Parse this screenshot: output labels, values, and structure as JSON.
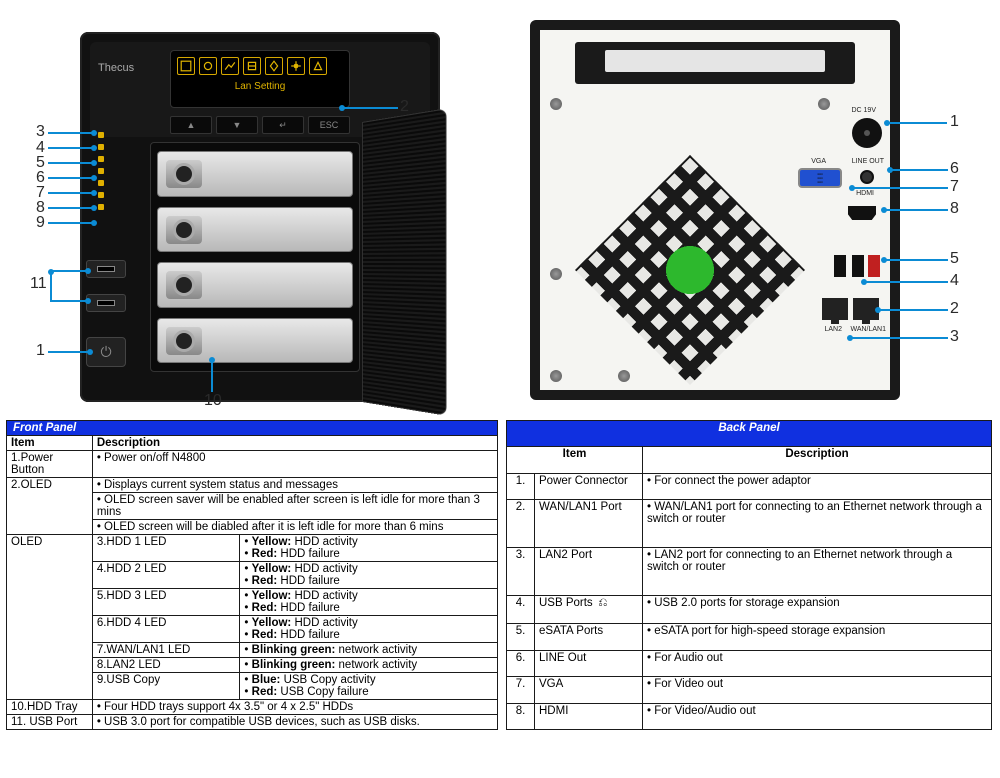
{
  "colors": {
    "callout": "#0b8bd4",
    "tableHeaderBg": "#1030e0",
    "tableHeaderFg": "#ffffff",
    "border": "#1a1a1a"
  },
  "front": {
    "brand": "Thecus",
    "oledText": "Lan Setting",
    "navButtons": [
      "▲",
      "▼",
      "↵",
      "ESC"
    ],
    "trayCount": 4,
    "ledCount": 7,
    "callouts": {
      "c1": "1",
      "c2": "2",
      "c3": "3",
      "c4": "4",
      "c5": "5",
      "c6": "6",
      "c7": "7",
      "c8": "8",
      "c9": "9",
      "c10": "10",
      "c11": "11"
    }
  },
  "back": {
    "labels": {
      "dc": "DC 19V",
      "vga": "VGA",
      "lineout": "LINE OUT",
      "hdmi": "HDMI",
      "lan2": "LAN2",
      "wanlan1": "WAN/LAN1"
    },
    "callouts": {
      "c1": "1",
      "c2": "2",
      "c3": "3",
      "c4": "4",
      "c5": "5",
      "c6": "6",
      "c7": "7",
      "c8": "8"
    }
  },
  "frontTable": {
    "title": "Front Panel",
    "headerItem": "Item",
    "headerDesc": "Description",
    "r1_item": "1.Power Button",
    "r1_d": "Power on/off N4800",
    "r2_item": "2.OLED",
    "r2_d1": "Displays current system status and messages",
    "r2_d2": "OLED screen saver will be enabled after screen is left idle for more than 3 mins",
    "r2_d3": "OLED screen will be diabled after it is left idle for more than 6 mins",
    "oled_label": "OLED",
    "l3_item": "3.HDD 1 LED",
    "l4_item": "4.HDD 2 LED",
    "l5_item": "5.HDD 3 LED",
    "l6_item": "6.HDD 4 LED",
    "l7_item": "7.WAN/LAN1 LED",
    "l8_item": "8.LAN2 LED",
    "l9_item": "9.USB Copy",
    "yellow_lbl": "Yellow:",
    "yellow_txt": " HDD activity",
    "red_lbl": "Red:",
    "red_txt": " HDD failure",
    "blinkg_lbl": "Blinking green:",
    "blinkg_txt": " network activity",
    "blue_lbl": "Blue:",
    "blue_txt": " USB Copy activity",
    "redu_lbl": "Red:",
    "redu_txt": " USB Copy failure",
    "r10_item": "10.HDD Tray",
    "r10_d": "Four HDD trays support 4x 3.5\" or 4 x 2.5\" HDDs",
    "r11_item": "11. USB Port",
    "r11_d": "USB 3.0 port for compatible USB devices, such as USB disks."
  },
  "backTable": {
    "title": "Back Panel",
    "headerItem": "Item",
    "headerDesc": "Description",
    "rows": [
      {
        "n": "1.",
        "item": "Power Connector",
        "desc": "For connect the power adaptor"
      },
      {
        "n": "2.",
        "item": "WAN/LAN1 Port",
        "desc": "WAN/LAN1 port for connecting to an Ethernet network through a switch or router"
      },
      {
        "n": "3.",
        "item": "LAN2 Port",
        "desc": "LAN2 port for connecting to an Ethernet network through a switch or router"
      },
      {
        "n": "4.",
        "item": "USB Ports",
        "icon": "usb",
        "desc": "USB 2.0 ports for storage expansion"
      },
      {
        "n": "5.",
        "item": "eSATA Ports",
        "desc": "eSATA port for high-speed storage expansion"
      },
      {
        "n": "6.",
        "item": "LINE Out",
        "desc": "For Audio out"
      },
      {
        "n": "7.",
        "item": "VGA",
        "desc": "For Video out"
      },
      {
        "n": "8.",
        "item": "HDMI",
        "desc": "For Video/Audio out"
      }
    ]
  }
}
